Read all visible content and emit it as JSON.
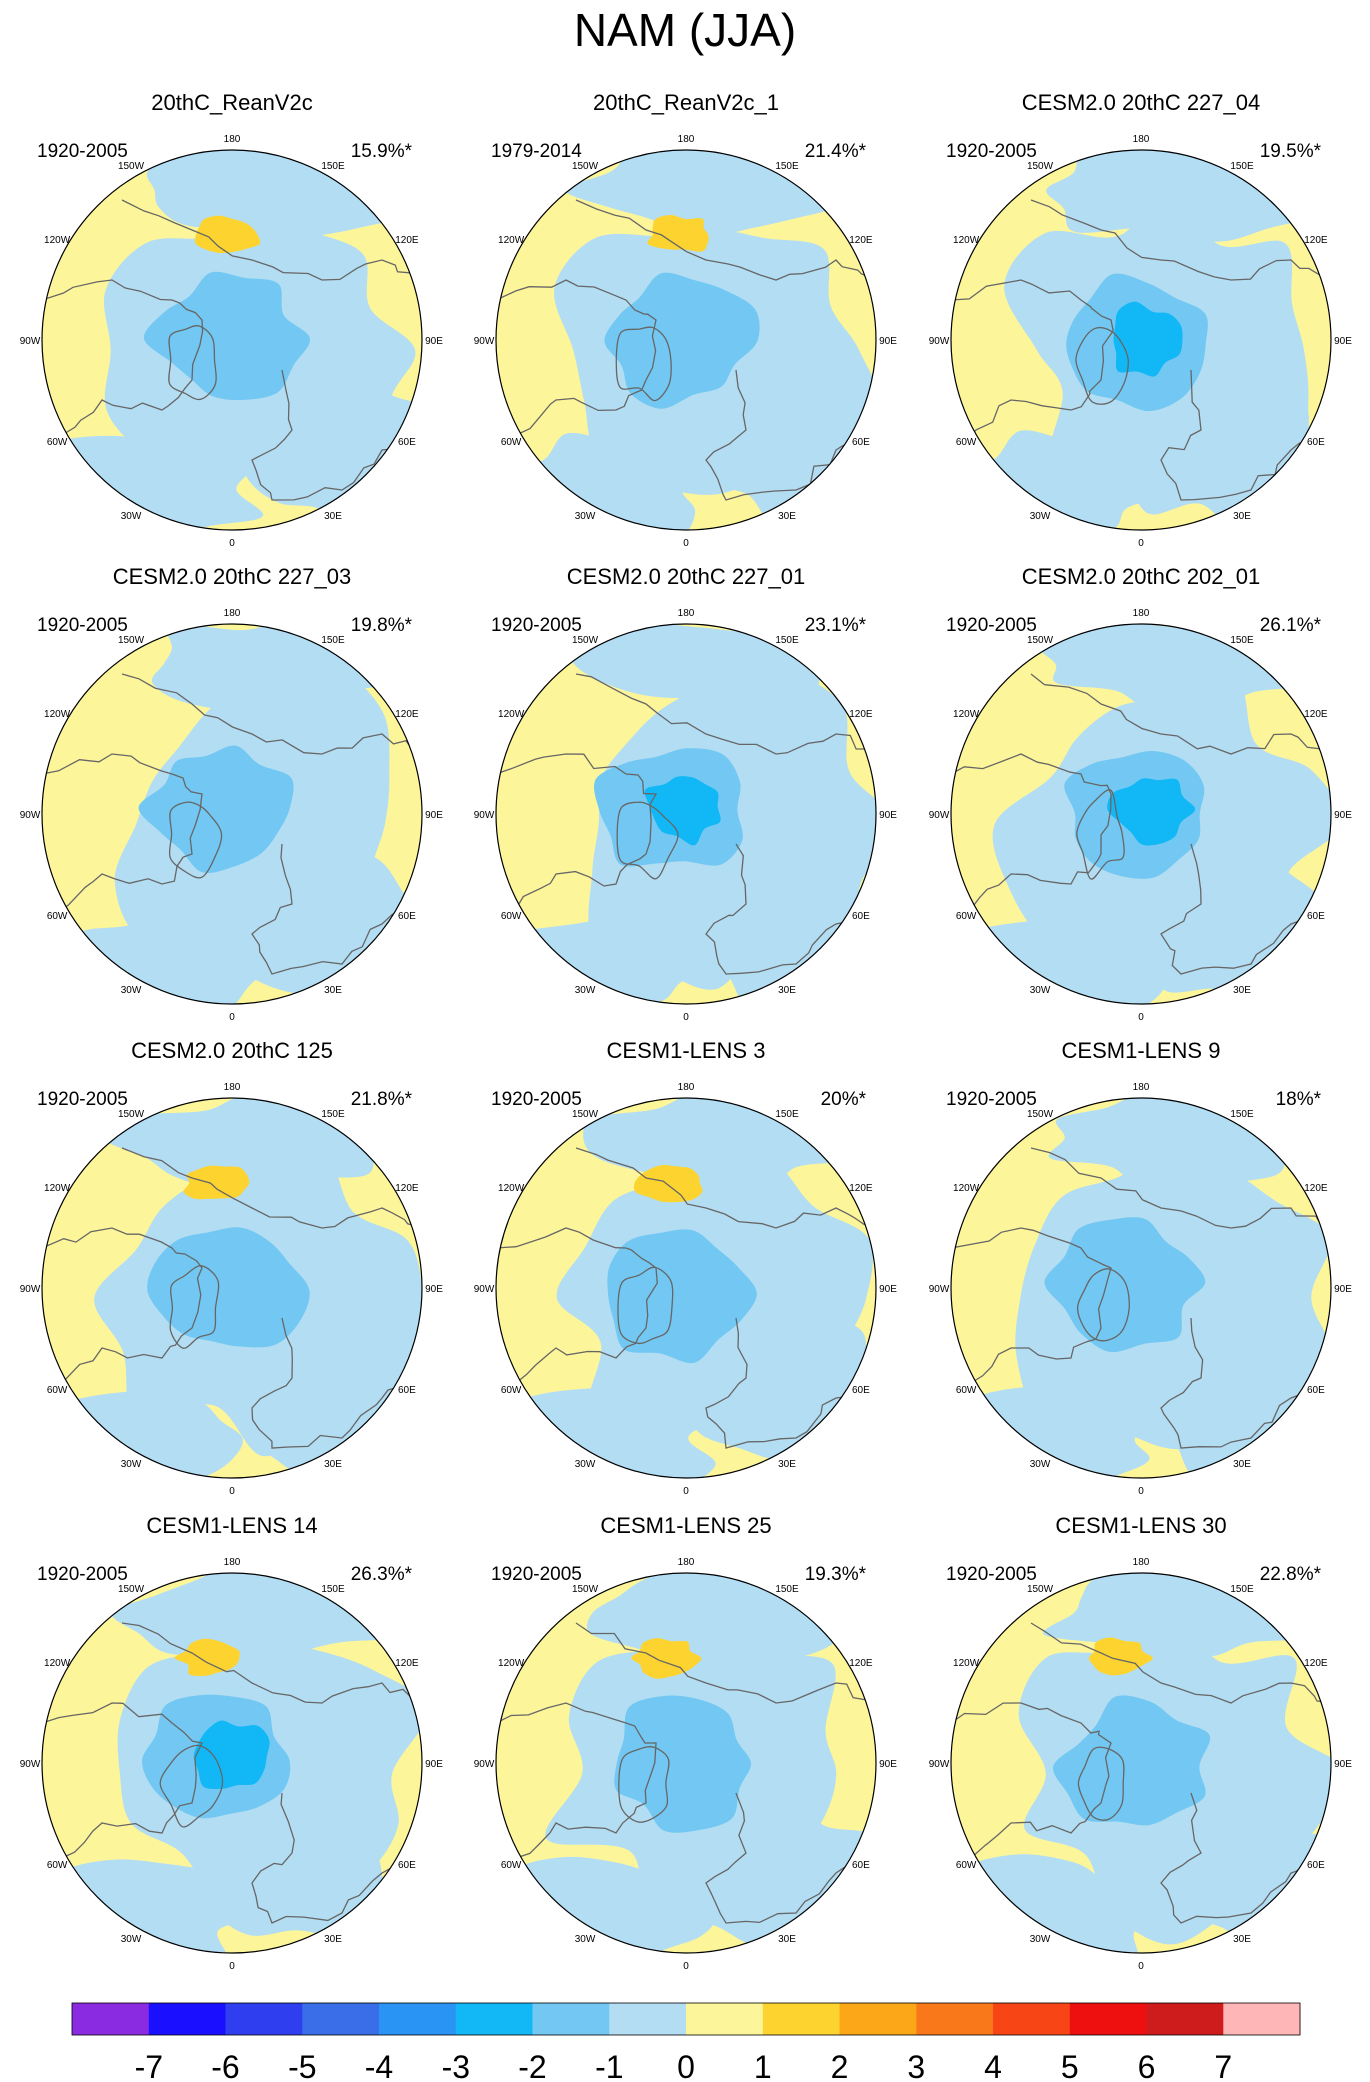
{
  "chart_data": {
    "type": "polar-contour",
    "title": "NAM (JJA)",
    "projection": "north-polar-stereographic",
    "longitude_labels": [
      "180",
      "150E",
      "120E",
      "90E",
      "60E",
      "30E",
      "0",
      "30W",
      "60W",
      "90W",
      "120W",
      "150W"
    ],
    "colorbar": {
      "ticks": [
        "-7",
        "-6",
        "-5",
        "-4",
        "-3",
        "-2",
        "-1",
        "0",
        "1",
        "2",
        "3",
        "4",
        "5",
        "6",
        "7"
      ],
      "colors": [
        "#8a2be2",
        "#1a10ff",
        "#2f3ff0",
        "#3a6ee8",
        "#2a94f5",
        "#11b8f5",
        "#72c8f2",
        "#b3ddf3",
        "#fdf59a",
        "#fdd42f",
        "#fba718",
        "#f9781a",
        "#f74516",
        "#ee0f0f",
        "#ce1b1b",
        "#feb6b6"
      ]
    },
    "panels": [
      {
        "title": "20thC_ReanV2c",
        "period": "1920-2005",
        "variance": "15.9%*",
        "min_level": -2,
        "max_level": 1
      },
      {
        "title": "20thC_ReanV2c_1",
        "period": "1979-2014",
        "variance": "21.4%*",
        "min_level": -2,
        "max_level": 1
      },
      {
        "title": "CESM2.0 20thC 227_04",
        "period": "1920-2005",
        "variance": "19.5%*",
        "min_level": -3,
        "max_level": 0
      },
      {
        "title": "CESM2.0 20thC 227_03",
        "period": "1920-2005",
        "variance": "19.8%*",
        "min_level": -2,
        "max_level": 0
      },
      {
        "title": "CESM2.0 20thC 227_01",
        "period": "1920-2005",
        "variance": "23.1%*",
        "min_level": -3,
        "max_level": 0
      },
      {
        "title": "CESM2.0 20thC 202_01",
        "period": "1920-2005",
        "variance": "26.1%*",
        "min_level": -3,
        "max_level": 0
      },
      {
        "title": "CESM2.0 20thC 125",
        "period": "1920-2005",
        "variance": "21.8%*",
        "min_level": -2,
        "max_level": 1
      },
      {
        "title": "CESM1-LENS 3",
        "period": "1920-2005",
        "variance": "20%*",
        "min_level": -2,
        "max_level": 1
      },
      {
        "title": "CESM1-LENS 9",
        "period": "1920-2005",
        "variance": "18%*",
        "min_level": -2,
        "max_level": 0
      },
      {
        "title": "CESM1-LENS 14",
        "period": "1920-2005",
        "variance": "26.3%*",
        "min_level": -3,
        "max_level": 1
      },
      {
        "title": "CESM1-LENS 25",
        "period": "1920-2005",
        "variance": "19.3%*",
        "min_level": -2,
        "max_level": 1
      },
      {
        "title": "CESM1-LENS 30",
        "period": "1920-2005",
        "variance": "22.8%*",
        "min_level": -2,
        "max_level": 1
      }
    ]
  }
}
